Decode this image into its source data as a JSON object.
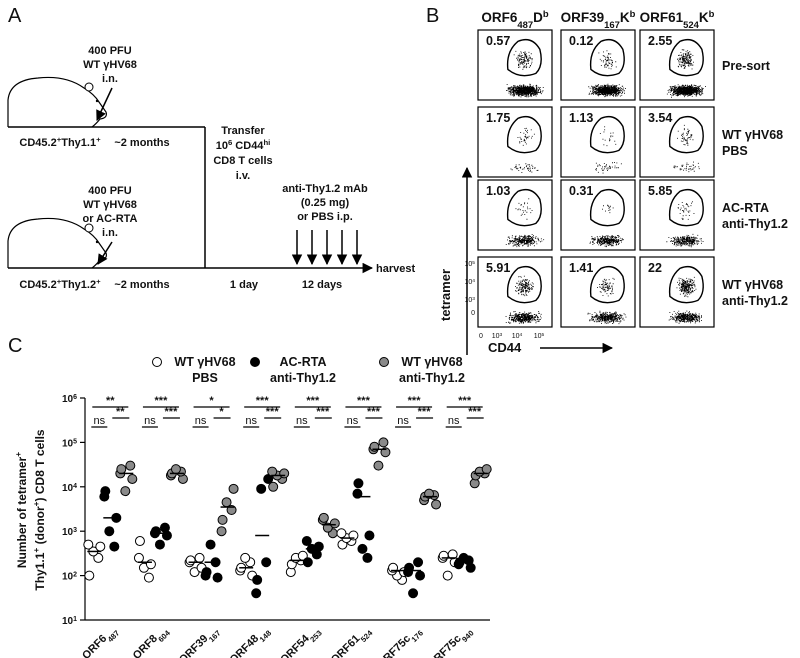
{
  "panel_labels": [
    "A",
    "B",
    "C"
  ],
  "diagram": {
    "top_infection": [
      "400 PFU",
      "WT γHV68",
      "i.n."
    ],
    "top_strain": [
      "CD45.2",
      {
        "sup": "+"
      },
      "Thy1.1",
      {
        "sup": "+"
      }
    ],
    "top_interval": "~2 months",
    "transfer": [
      "Transfer",
      [
        "10",
        {
          "sup": "6"
        },
        " CD44",
        {
          "sup": "hi"
        }
      ],
      "CD8 T cells",
      "i.v."
    ],
    "bottom_infection": [
      "400 PFU",
      "WT γHV68",
      "or AC-RTA",
      "i.n."
    ],
    "bottom_strain": [
      "CD45.2",
      {
        "sup": "+"
      },
      "Thy1.2",
      {
        "sup": "+"
      }
    ],
    "treatment": [
      "anti-Thy1.2 mAb",
      "(0.25 mg)",
      "or PBS i.p."
    ],
    "timeline": [
      "~2 months",
      "1 day",
      "12 days"
    ],
    "harvest": "harvest"
  },
  "flow": {
    "columns": [
      [
        "ORF6",
        {
          "sub": "487"
        },
        "D",
        {
          "sup": "b"
        }
      ],
      [
        "ORF39",
        {
          "sub": "167"
        },
        "K",
        {
          "sup": "b"
        }
      ],
      [
        "ORF61",
        {
          "sub": "524"
        },
        "K",
        {
          "sup": "b"
        }
      ]
    ],
    "rows": [
      [
        "Pre-sort"
      ],
      [
        "WT γHV68",
        "PBS"
      ],
      [
        "AC-RTA",
        "anti-Thy1.2"
      ],
      [
        "WT γHV68",
        "anti-Thy1.2"
      ]
    ],
    "percentages": [
      [
        0.57,
        0.12,
        2.55
      ],
      [
        1.75,
        1.13,
        3.54
      ],
      [
        1.03,
        0.31,
        5.85
      ],
      [
        5.91,
        1.41,
        22
      ]
    ],
    "y_label": "tetramer",
    "x_label": "CD44",
    "y_tick_labels": [
      [
        "10",
        {
          "sup": "5"
        }
      ],
      [
        "10",
        {
          "sup": "4"
        }
      ],
      [
        "10",
        {
          "sup": "3"
        }
      ],
      "0"
    ],
    "x_tick_labels": [
      "0",
      [
        "10",
        {
          "sup": "3"
        }
      ],
      [
        "10",
        {
          "sup": "4"
        }
      ],
      [
        "10",
        {
          "sup": "5"
        }
      ]
    ]
  },
  "chart_data": {
    "type": "dot",
    "y_label": [
      [
        "Number of tetramer",
        {
          "sup": "+"
        }
      ],
      [
        "Thy1.1",
        {
          "sup": "+"
        },
        " (donor",
        {
          "sup": "+"
        },
        ") CD8 T cells"
      ]
    ],
    "categories": [
      [
        "ORF6",
        {
          "sub": "487"
        }
      ],
      [
        "ORF8",
        {
          "sub": "604"
        }
      ],
      [
        "ORF39",
        {
          "sub": "167"
        }
      ],
      [
        "ORF48",
        {
          "sub": "148"
        }
      ],
      [
        "ORF54",
        {
          "sub": "253"
        }
      ],
      [
        "ORF61",
        {
          "sub": "524"
        }
      ],
      [
        "ORF75c",
        {
          "sub": "176"
        }
      ],
      [
        "ORF75c",
        {
          "sub": "940"
        }
      ]
    ],
    "log_scale": true,
    "ylim": [
      10,
      1000000
    ],
    "yticks": [
      {
        "value": 10,
        "label": [
          "10",
          {
            "sup": "1"
          }
        ]
      },
      {
        "value": 100,
        "label": [
          "10",
          {
            "sup": "2"
          }
        ]
      },
      {
        "value": 1000,
        "label": [
          "10",
          {
            "sup": "3"
          }
        ]
      },
      {
        "value": 10000,
        "label": [
          "10",
          {
            "sup": "4"
          }
        ]
      },
      {
        "value": 100000,
        "label": [
          "10",
          {
            "sup": "5"
          }
        ]
      },
      {
        "value": 1000000,
        "label": [
          "10",
          {
            "sup": "6"
          }
        ]
      }
    ],
    "series": [
      {
        "name": [
          "WT γHV68",
          "PBS"
        ],
        "color": "#ffffff",
        "values": [
          [
            100,
            250,
            350,
            450,
            500
          ],
          [
            90,
            150,
            180,
            250,
            600
          ],
          [
            120,
            150,
            200,
            220,
            250
          ],
          [
            100,
            130,
            150,
            200,
            250
          ],
          [
            120,
            180,
            220,
            250,
            280
          ],
          [
            500,
            600,
            700,
            800,
            900
          ],
          [
            80,
            100,
            120,
            130,
            150
          ],
          [
            100,
            200,
            250,
            280,
            300
          ]
        ],
        "means": [
          350,
          200,
          200,
          150,
          220,
          700,
          130,
          250
        ]
      },
      {
        "name": [
          "AC-RTA",
          "anti-Thy1.2"
        ],
        "color": "#000000",
        "values": [
          [
            450,
            1000,
            2000,
            6000,
            8000
          ],
          [
            500,
            800,
            900,
            1000,
            1200
          ],
          [
            90,
            100,
            120,
            200,
            500
          ],
          [
            40,
            80,
            200,
            9000,
            15000
          ],
          [
            200,
            300,
            400,
            450,
            600
          ],
          [
            250,
            400,
            800,
            7000,
            12000
          ],
          [
            40,
            100,
            120,
            150,
            200
          ],
          [
            150,
            180,
            200,
            220,
            250
          ]
        ],
        "means": [
          2000,
          900,
          200,
          800,
          400,
          6000,
          130,
          200
        ]
      },
      {
        "name": [
          "WT γHV68",
          "anti-Thy1.2"
        ],
        "color": "#8a8a8a",
        "values": [
          [
            8000,
            15000,
            20000,
            25000,
            30000
          ],
          [
            15000,
            18000,
            20000,
            22000,
            25000
          ],
          [
            1000,
            1800,
            3000,
            4500,
            9000
          ],
          [
            10000,
            15000,
            18000,
            20000,
            22000
          ],
          [
            900,
            1200,
            1500,
            1800,
            2000
          ],
          [
            30000,
            60000,
            70000,
            80000,
            100000
          ],
          [
            4000,
            5000,
            6000,
            6500,
            7000
          ],
          [
            12000,
            18000,
            20000,
            22000,
            25000
          ]
        ],
        "means": [
          20000,
          20000,
          3500,
          18000,
          1400,
          70000,
          6000,
          20000
        ]
      }
    ],
    "comparisons": [
      [
        "**",
        "ns",
        "**"
      ],
      [
        "***",
        "ns",
        "***"
      ],
      [
        "*",
        "ns",
        "*"
      ],
      [
        "***",
        "ns",
        "***"
      ],
      [
        "***",
        "ns",
        "***"
      ],
      [
        "***",
        "ns",
        "***"
      ],
      [
        "***",
        "ns",
        "***"
      ],
      [
        "***",
        "ns",
        "***"
      ]
    ]
  }
}
